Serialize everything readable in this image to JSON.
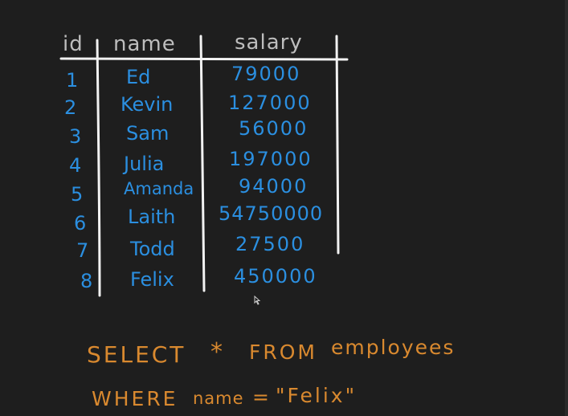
{
  "table": {
    "headers": {
      "id": "id",
      "name": "name",
      "salary": "salary"
    },
    "rows": [
      {
        "id": "1",
        "name": "Ed",
        "salary": "79000"
      },
      {
        "id": "2",
        "name": "Kevin",
        "salary": "127000"
      },
      {
        "id": "3",
        "name": "Sam",
        "salary": "56000"
      },
      {
        "id": "4",
        "name": "Julia",
        "salary": "197000"
      },
      {
        "id": "5",
        "name": "Amanda",
        "salary": "94000"
      },
      {
        "id": "6",
        "name": "Laith",
        "salary": "54750000"
      },
      {
        "id": "7",
        "name": "Todd",
        "salary": "27500"
      },
      {
        "id": "8",
        "name": "Felix",
        "salary": "450000"
      }
    ]
  },
  "query": {
    "select_kw": "SELECT",
    "star": "*",
    "from_kw": "FROM",
    "table_name": "employees",
    "where_kw": "WHERE",
    "column": "name",
    "operator": "=",
    "value": "\"Felix\""
  },
  "colors": {
    "background": "#1e1e1e",
    "header_text": "#bdbdbd",
    "table_lines": "#f2f2f2",
    "data_text": "#2b8fe0",
    "query_text": "#d9892f"
  },
  "icons": {
    "cursor": "mouse-pointer-icon"
  }
}
